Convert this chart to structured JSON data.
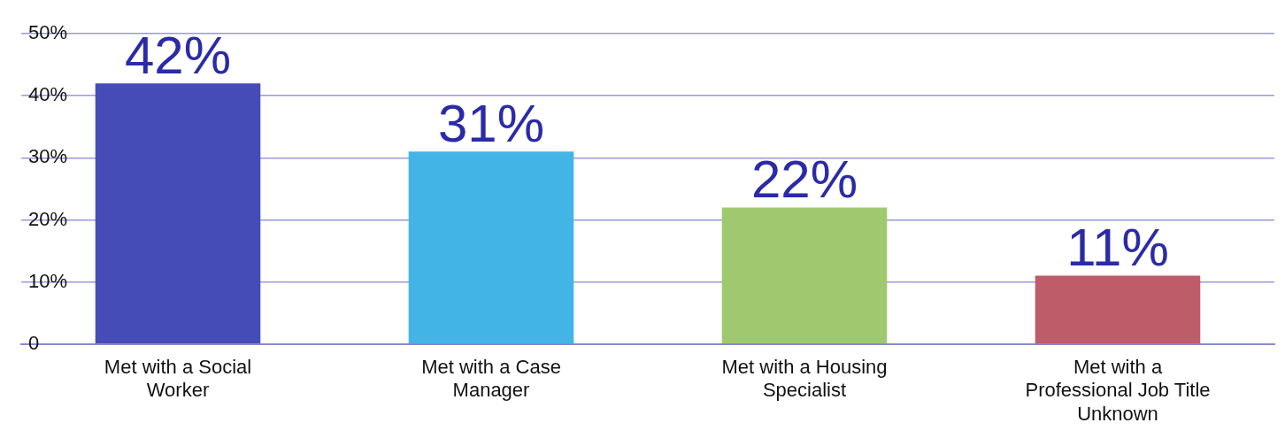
{
  "chart_data": {
    "type": "bar",
    "categories": [
      "Met with a Social Worker",
      "Met with a Case Manager",
      "Met with a Housing Specialist",
      "Met with a Professional Job Title Unknown"
    ],
    "values": [
      42,
      31,
      22,
      11
    ],
    "colors": [
      "#454cb8",
      "#42b4e6",
      "#9fc96e",
      "#be5c69"
    ],
    "value_labels": [
      "42%",
      "31%",
      "22%",
      "11%"
    ],
    "ylim": [
      0,
      50
    ],
    "yticks": [
      {
        "value": 0,
        "label": "0"
      },
      {
        "value": 10,
        "label": "10%"
      },
      {
        "value": 20,
        "label": "20%"
      },
      {
        "value": 30,
        "label": "30%"
      },
      {
        "value": 40,
        "label": "40%"
      },
      {
        "value": 50,
        "label": "50%"
      }
    ],
    "grid": "y",
    "legend": false
  }
}
